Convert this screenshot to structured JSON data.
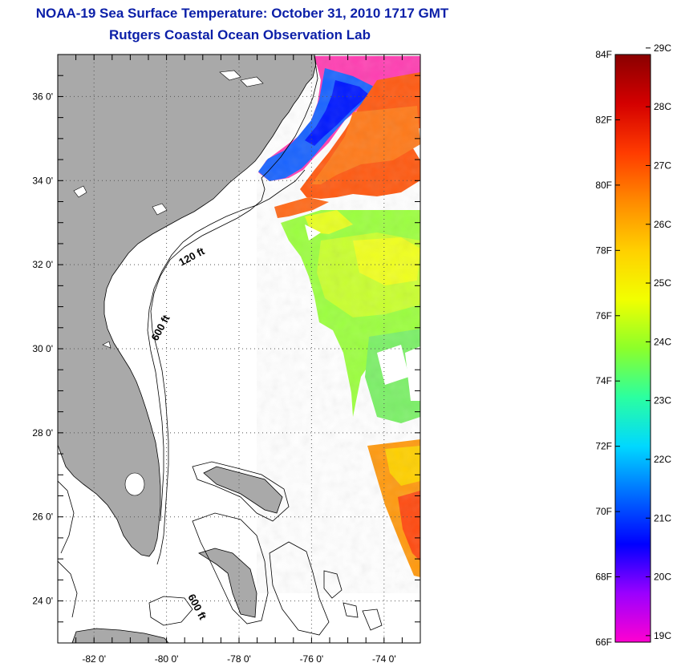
{
  "header": {
    "title": "NOAA-19 Sea Surface Temperature:  October 31, 2010 1717 GMT",
    "subtitle": "Rutgers Coastal Ocean Observation Lab"
  },
  "map": {
    "lat_ticks": [
      "36 0'",
      "34 0'",
      "32 0'",
      "30 0'",
      "28 0'",
      "26 0'",
      "24 0'"
    ],
    "lon_ticks": [
      "-82 0'",
      "-80 0'",
      "-78 0'",
      "-76 0'",
      "-74 0'"
    ],
    "lat_range": [
      23.0,
      37.0
    ],
    "lon_range": [
      -83.0,
      -73.0
    ],
    "contours": [
      {
        "label": "120 ft"
      },
      {
        "label": "600 ft"
      },
      {
        "label": "600 ft"
      }
    ],
    "colors": {
      "land": "#a9a9a9",
      "grid": "#555555"
    }
  },
  "colorbar": {
    "f_labels": [
      "84F",
      "82F",
      "80F",
      "78F",
      "76F",
      "74F",
      "72F",
      "70F",
      "68F",
      "66F"
    ],
    "c_labels": [
      "29C",
      "28C",
      "27C",
      "26C",
      "25C",
      "24C",
      "23C",
      "22C",
      "21C",
      "20C",
      "19C"
    ],
    "stops": [
      "#8a0000",
      "#d40000",
      "#ff3b00",
      "#ff8a00",
      "#ffd000",
      "#f2ff00",
      "#8cff2a",
      "#2bffa0",
      "#00d8ff",
      "#006bff",
      "#0000ff",
      "#9a00ff",
      "#ff00d0"
    ]
  }
}
